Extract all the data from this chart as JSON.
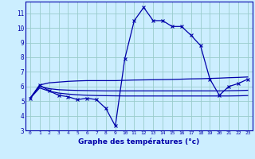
{
  "xlabel": "Graphe des températures (°c)",
  "background_color": "#cceeff",
  "grid_color": "#99cccc",
  "line_color": "#0000aa",
  "xlim": [
    -0.5,
    23.5
  ],
  "ylim": [
    3,
    11.8
  ],
  "x_hours": [
    0,
    1,
    2,
    3,
    4,
    5,
    6,
    7,
    8,
    9,
    10,
    11,
    12,
    13,
    14,
    15,
    16,
    17,
    18,
    19,
    20,
    21,
    22,
    23
  ],
  "temp_main": [
    5.2,
    6.1,
    5.7,
    5.4,
    5.3,
    5.1,
    5.2,
    5.1,
    4.5,
    3.3,
    7.9,
    10.5,
    11.4,
    10.5,
    10.5,
    10.1,
    10.1,
    9.5,
    8.8,
    6.5,
    5.4,
    6.0,
    6.2,
    6.5
  ],
  "line1": [
    5.2,
    6.1,
    6.25,
    6.3,
    6.35,
    6.38,
    6.4,
    6.4,
    6.4,
    6.4,
    6.42,
    6.44,
    6.45,
    6.46,
    6.47,
    6.48,
    6.5,
    6.52,
    6.53,
    6.55,
    6.57,
    6.6,
    6.62,
    6.65
  ],
  "line2": [
    5.2,
    6.0,
    5.85,
    5.78,
    5.75,
    5.73,
    5.72,
    5.71,
    5.7,
    5.7,
    5.7,
    5.7,
    5.7,
    5.7,
    5.7,
    5.7,
    5.7,
    5.7,
    5.7,
    5.7,
    5.7,
    5.71,
    5.72,
    5.74
  ],
  "line3": [
    5.2,
    5.9,
    5.68,
    5.55,
    5.48,
    5.43,
    5.4,
    5.38,
    5.37,
    5.36,
    5.35,
    5.35,
    5.35,
    5.35,
    5.35,
    5.35,
    5.35,
    5.35,
    5.35,
    5.35,
    5.35,
    5.35,
    5.36,
    5.38
  ],
  "yticks": [
    3,
    4,
    5,
    6,
    7,
    8,
    9,
    10,
    11
  ],
  "xticks": [
    0,
    1,
    2,
    3,
    4,
    5,
    6,
    7,
    8,
    9,
    10,
    11,
    12,
    13,
    14,
    15,
    16,
    17,
    18,
    19,
    20,
    21,
    22,
    23
  ]
}
